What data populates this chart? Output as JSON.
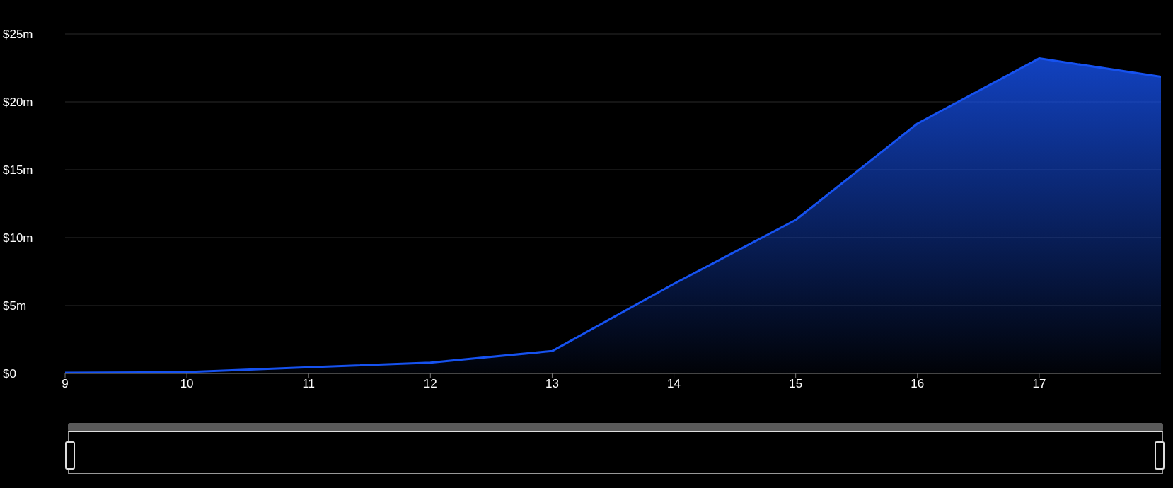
{
  "chart_data": {
    "type": "area",
    "x": [
      9,
      10,
      11,
      12,
      13,
      14,
      15,
      16,
      17,
      18
    ],
    "series": [
      {
        "color": "#1652f0",
        "values": [
          0.05,
          0.1,
          0.45,
          0.8,
          1.65,
          6.6,
          11.3,
          18.4,
          23.2,
          21.85
        ]
      }
    ],
    "xlim": [
      9,
      18
    ],
    "xticks": [
      9,
      10,
      11,
      12,
      13,
      14,
      15,
      16,
      17
    ],
    "ylim": [
      0,
      25
    ],
    "yticks": [
      {
        "value": 0,
        "label": "$0"
      },
      {
        "value": 5,
        "label": "$5m"
      },
      {
        "value": 10,
        "label": "$10m"
      },
      {
        "value": 15,
        "label": "$15m"
      },
      {
        "value": 20,
        "label": "$20m"
      },
      {
        "value": 25,
        "label": "$25m"
      }
    ],
    "grid": "y",
    "marker": "none",
    "line_style": "solid"
  }
}
